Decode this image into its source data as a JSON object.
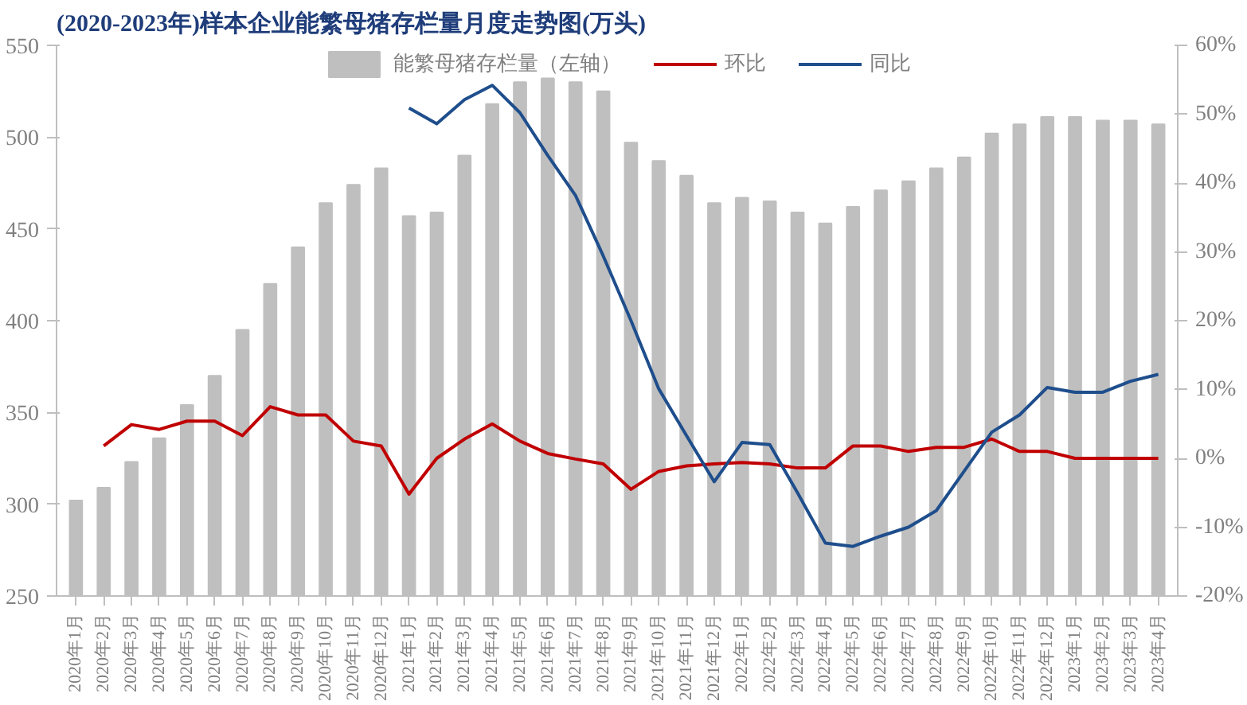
{
  "chart_data": {
    "type": "bar",
    "title": "(2020-2023年)样本企业能繁母猪存栏量月度走势图(万头)",
    "categories": [
      "2020年1月",
      "2020年2月",
      "2020年3月",
      "2020年4月",
      "2020年5月",
      "2020年6月",
      "2020年7月",
      "2020年8月",
      "2020年9月",
      "2020年10月",
      "2020年11月",
      "2020年12月",
      "2021年1月",
      "2021年2月",
      "2021年3月",
      "2021年4月",
      "2021年5月",
      "2021年6月",
      "2021年7月",
      "2021年8月",
      "2021年9月",
      "2021年10月",
      "2021年11月",
      "2021年12月",
      "2022年1月",
      "2022年2月",
      "2022年3月",
      "2022年4月",
      "2022年5月",
      "2022年6月",
      "2022年7月",
      "2022年8月",
      "2022年9月",
      "2022年10月",
      "2022年11月",
      "2022年12月",
      "2023年1月",
      "2023年2月",
      "2023年3月",
      "2023年4月"
    ],
    "series": [
      {
        "name": "能繁母猪存栏量（左轴）",
        "color": "#bfbfbf",
        "values": [
          302,
          309,
          323,
          336,
          354,
          370,
          395,
          420,
          440,
          464,
          474,
          483,
          457,
          459,
          490,
          518,
          530,
          532,
          530,
          525,
          497,
          487,
          479,
          464,
          467,
          465,
          459,
          453,
          462,
          471,
          476,
          483,
          489,
          502,
          507,
          511,
          511,
          509,
          509,
          507
        ]
      },
      {
        "name": "环比",
        "type": "line",
        "axis": "y2",
        "color": "#c00000",
        "values": [
          null,
          1.8,
          4.9,
          4.2,
          5.4,
          5.4,
          3.3,
          7.5,
          6.3,
          6.3,
          2.5,
          1.8,
          -5.2,
          0.0,
          2.8,
          5.0,
          2.5,
          0.7,
          -0.1,
          -0.8,
          -4.5,
          -1.9,
          -1.1,
          -0.8,
          -0.6,
          -0.8,
          -1.4,
          -1.4,
          1.8,
          1.8,
          1.0,
          1.6,
          1.6,
          2.8,
          1.0,
          1.0,
          0.0,
          0.0,
          0.0,
          0.0
        ]
      },
      {
        "name": "同比",
        "type": "line",
        "axis": "y2",
        "color": "#1f4e8c",
        "values": [
          null,
          null,
          null,
          null,
          null,
          null,
          null,
          null,
          null,
          null,
          null,
          null,
          50.9,
          48.6,
          52.1,
          54.2,
          50.2,
          44.0,
          38.2,
          29.4,
          20.0,
          10.1,
          3.3,
          -3.4,
          2.3,
          2.0,
          -5.0,
          -12.3,
          -12.8,
          -11.3,
          -10.0,
          -7.6,
          -1.9,
          3.8,
          6.3,
          10.3,
          9.6,
          9.6,
          11.2,
          12.2
        ]
      }
    ],
    "ylim": [
      250,
      550
    ],
    "yticks": [
      250,
      300,
      350,
      400,
      450,
      500,
      550
    ],
    "y2lim": [
      -20,
      60
    ],
    "y2ticks": [
      {
        "value": -20,
        "label": "-20%"
      },
      {
        "value": -10,
        "label": "-10%"
      },
      {
        "value": 0,
        "label": "0%"
      },
      {
        "value": 10,
        "label": "10%"
      },
      {
        "value": 20,
        "label": "20%"
      },
      {
        "value": 30,
        "label": "30%"
      },
      {
        "value": 40,
        "label": "40%"
      },
      {
        "value": 50,
        "label": "50%"
      },
      {
        "value": 60,
        "label": "60%"
      }
    ],
    "grid": false,
    "legend": "top",
    "marker": "none",
    "line_style": "solid"
  }
}
